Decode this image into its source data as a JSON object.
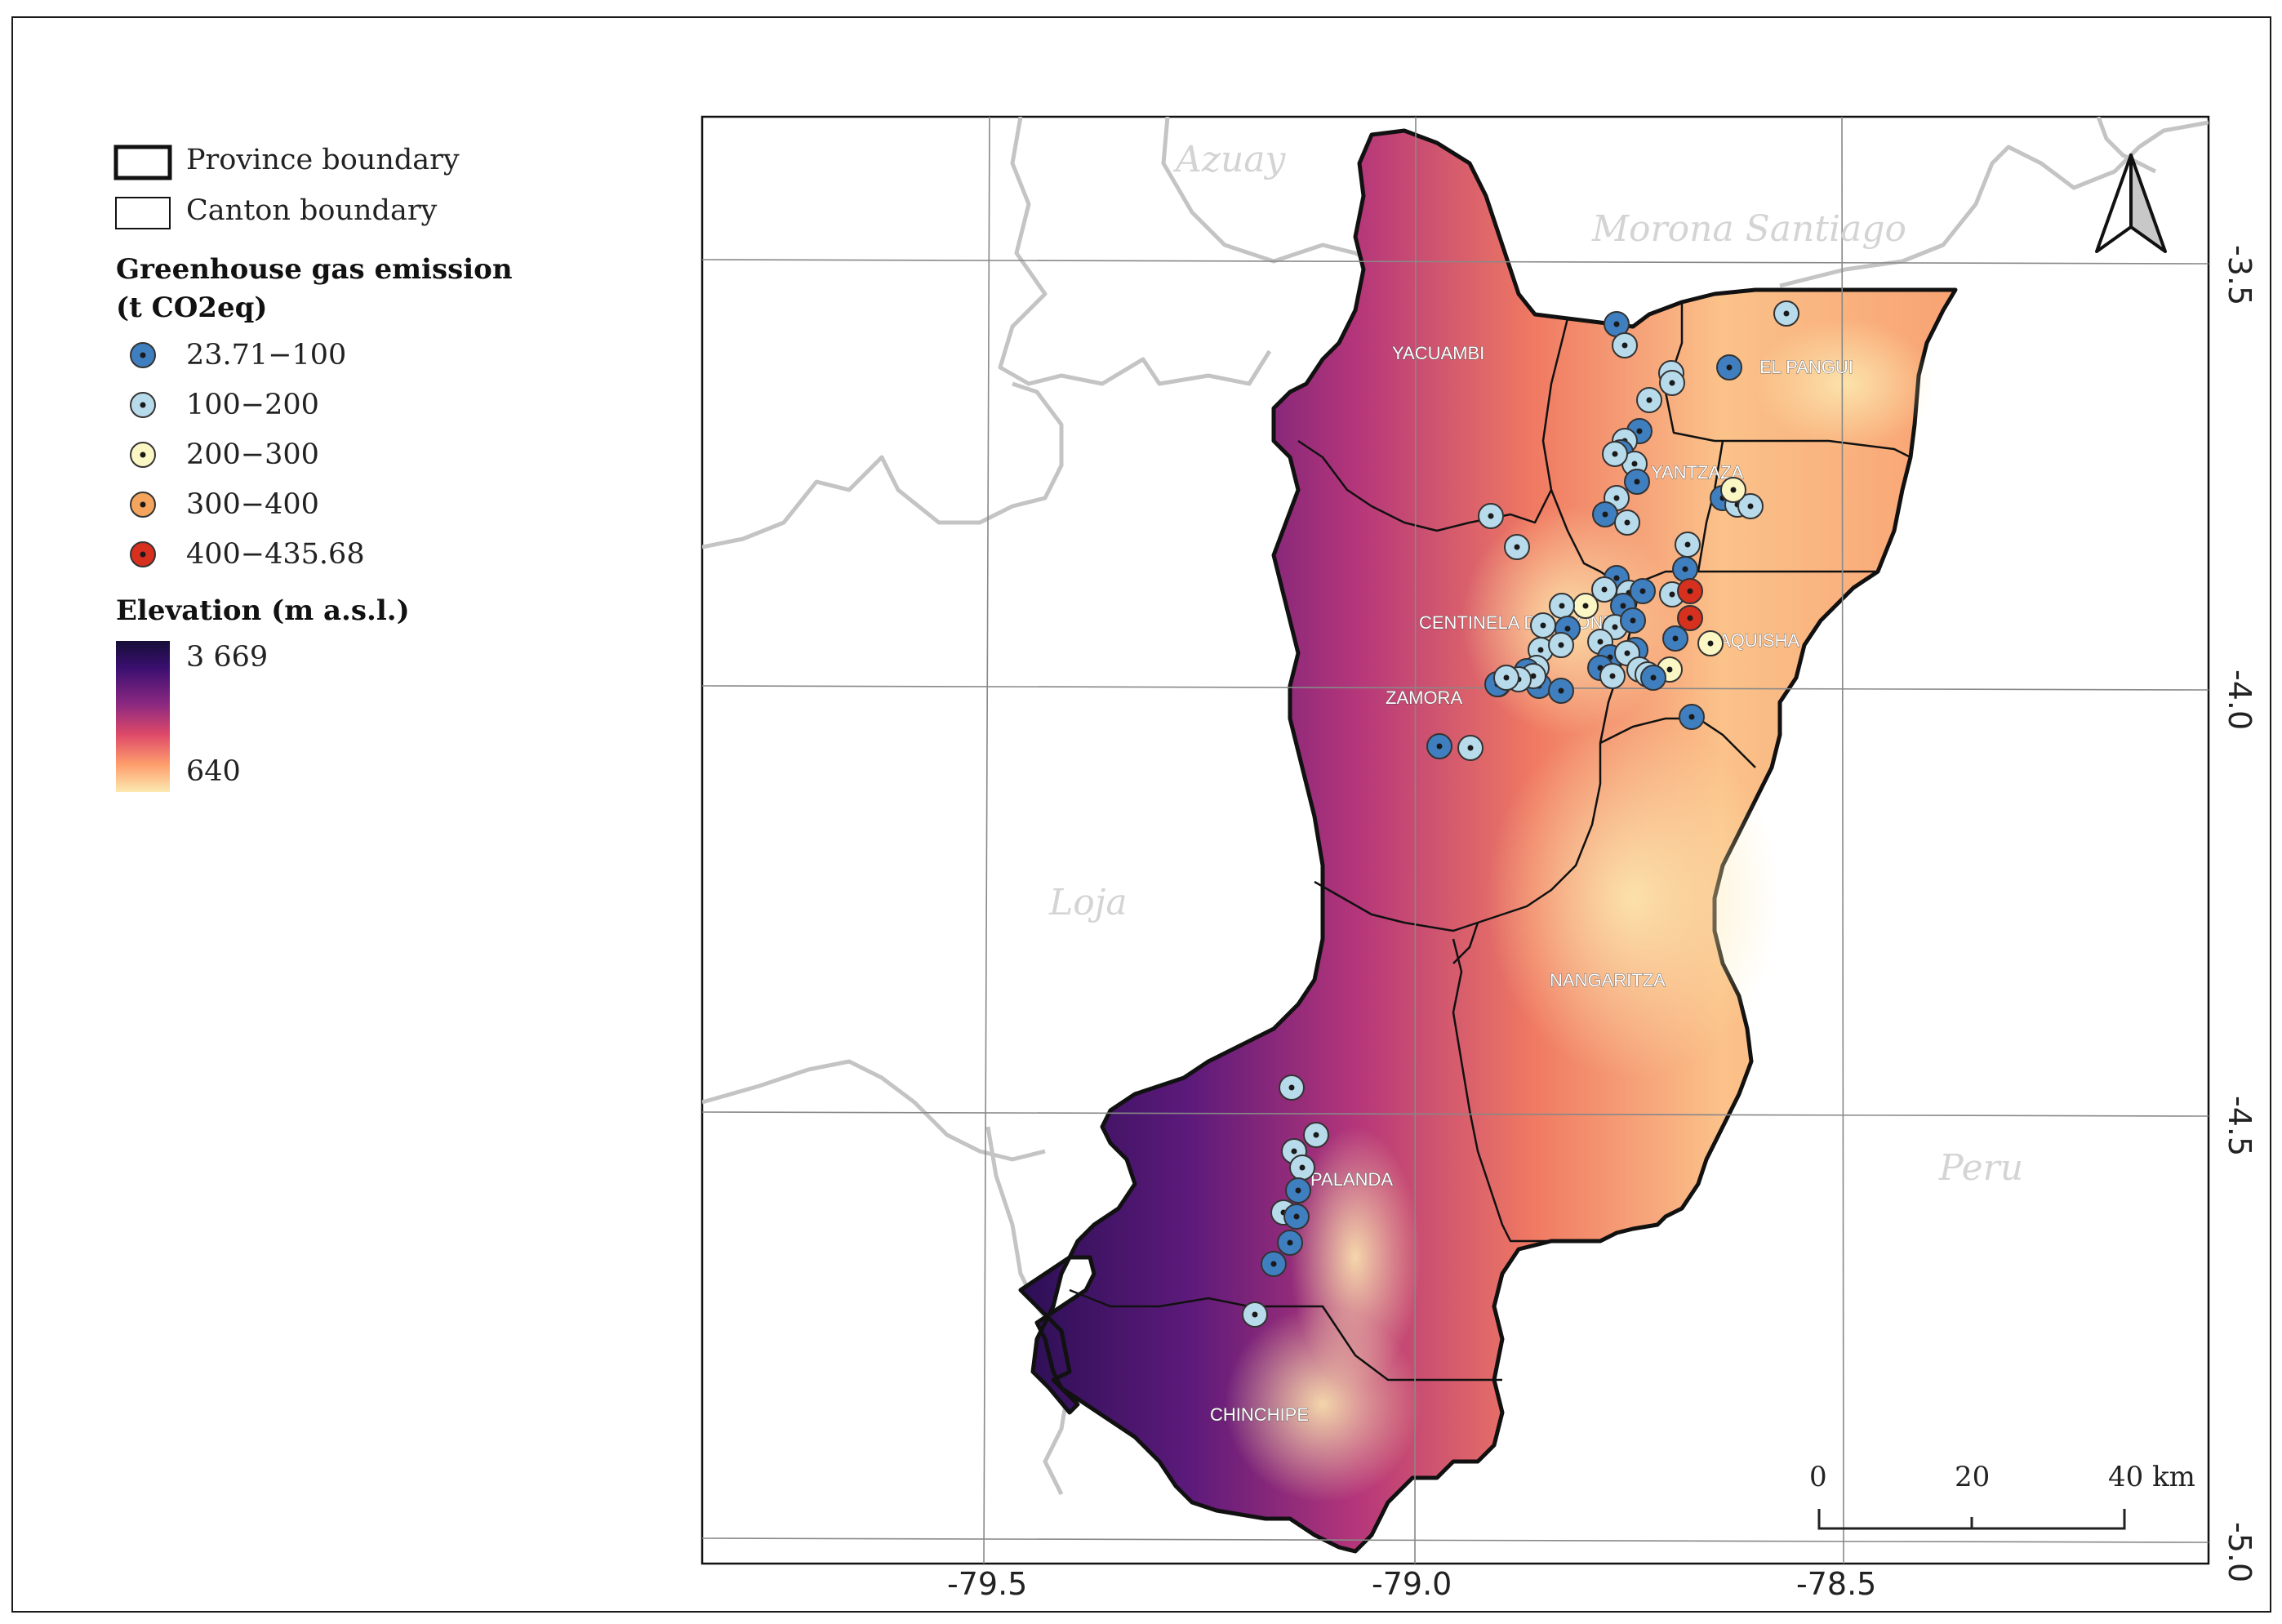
{
  "legend": {
    "province_boundary": "Province boundary",
    "canton_boundary": "Canton boundary",
    "emission_title_line1": "Greenhouse gas emission",
    "emission_title_line2": "(t CO2eq)",
    "emission_classes": [
      {
        "label": "23.71−100",
        "color": "#3f7fbf"
      },
      {
        "label": "100−200",
        "color": "#b8dbeb"
      },
      {
        "label": "200−300",
        "color": "#fbf7c4"
      },
      {
        "label": "300−400",
        "color": "#f4a45c"
      },
      {
        "label": "400−435.68",
        "color": "#d7301f"
      }
    ],
    "elevation_title": "Elevation (m a.s.l.)",
    "elevation_max": "3 669",
    "elevation_min": "640",
    "elevation_colors": [
      "#150e37",
      "#3b0f70",
      "#8c2981",
      "#de4968",
      "#fe9f6d",
      "#fce8b0"
    ]
  },
  "axes": {
    "x_ticks": [
      "-79.5",
      "-79.0",
      "-78.5"
    ],
    "y_ticks": [
      "-3.5",
      "-4.0",
      "-4.5",
      "-5.0"
    ]
  },
  "regions": [
    "Azuay",
    "Morona Santiago",
    "Loja",
    "Peru"
  ],
  "cantons": [
    "YACUAMBI",
    "EL PANGUI",
    "YANTZAZA",
    "CENTINELA DEL CONDOR",
    "PAQUISHA",
    "ZAMORA",
    "NANGARITZA",
    "PALANDA",
    "CHINCHIPE"
  ],
  "scale_bar": {
    "labels": [
      "0",
      "20",
      "40 km"
    ]
  },
  "north_arrow": "north-arrow-icon",
  "colors": {
    "grid": "#888888",
    "neighbor_boundary": "#c4c4c4",
    "province_boundary": "#111111"
  }
}
